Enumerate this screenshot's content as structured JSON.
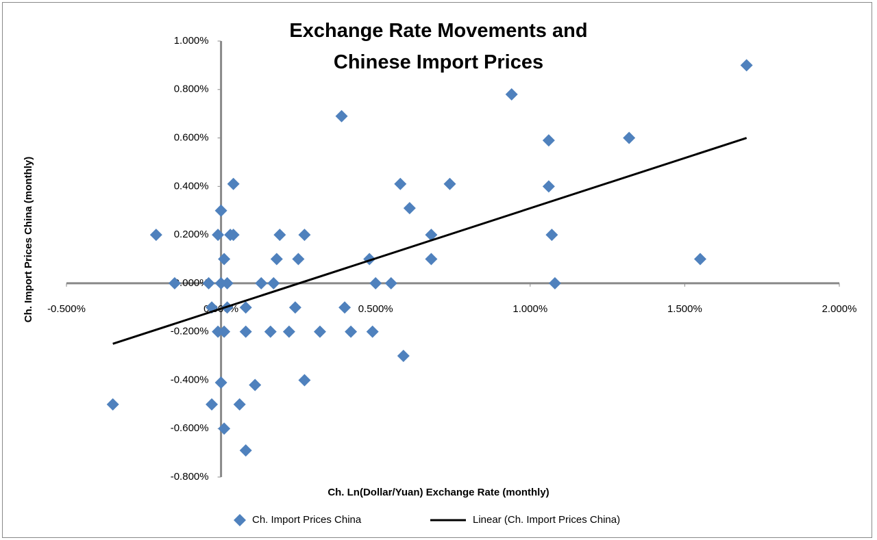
{
  "chart_data": {
    "type": "scatter",
    "title": "Exchange Rate Movements and Chinese Import Prices",
    "x_label": "Ch. Ln(Dollar/Yuan) Exchange Rate (monthly)",
    "y_label": "Ch. Import Prices China (monthly)",
    "xlim": [
      -0.5,
      2.0
    ],
    "ylim": [
      -0.8,
      1.0
    ],
    "xticks": [
      {
        "value": -0.5,
        "label": "-0.500%"
      },
      {
        "value": 0,
        "label": "0.000%"
      },
      {
        "value": 0.5,
        "label": "0.500%"
      },
      {
        "value": 1.0,
        "label": "1.000%"
      },
      {
        "value": 1.5,
        "label": "1.500%"
      },
      {
        "value": 2.0,
        "label": "2.000%"
      }
    ],
    "yticks": [
      {
        "value": -0.8,
        "label": "-0.800%"
      },
      {
        "value": -0.6,
        "label": "-0.600%"
      },
      {
        "value": -0.4,
        "label": "-0.400%"
      },
      {
        "value": -0.2,
        "label": "-0.200%"
      },
      {
        "value": 0,
        "label": "0.000%"
      },
      {
        "value": 0.2,
        "label": "0.200%"
      },
      {
        "value": 0.4,
        "label": "0.400%"
      },
      {
        "value": 0.6,
        "label": "0.600%"
      },
      {
        "value": 0.8,
        "label": "0.800%"
      },
      {
        "value": 1.0,
        "label": "1.000%"
      }
    ],
    "grid": false,
    "legend": "bottom",
    "series": [
      {
        "name": "Ch. Import Prices China",
        "color": "#4f81bd",
        "marker": "diamond",
        "x": [
          1.7,
          0.94,
          0.39,
          1.06,
          1.32,
          0.04,
          0.58,
          0.74,
          1.06,
          0.61,
          0.0,
          -0.21,
          -0.01,
          0.03,
          0.04,
          0.19,
          0.27,
          0.68,
          1.07,
          0.01,
          0.18,
          0.25,
          0.48,
          0.68,
          1.55,
          -0.15,
          -0.04,
          0.0,
          0.02,
          0.13,
          0.17,
          0.5,
          0.55,
          1.08,
          -0.03,
          0.02,
          0.08,
          0.24,
          0.4,
          -0.01,
          0.01,
          0.08,
          0.16,
          0.22,
          0.32,
          0.42,
          0.49,
          0.59,
          0.0,
          0.11,
          0.27,
          -0.35,
          -0.03,
          0.06,
          0.01,
          0.08
        ],
        "values": [
          0.9,
          0.78,
          0.69,
          0.59,
          0.6,
          0.41,
          0.41,
          0.41,
          0.4,
          0.31,
          0.3,
          0.2,
          0.2,
          0.2,
          0.2,
          0.2,
          0.2,
          0.2,
          0.2,
          0.1,
          0.1,
          0.1,
          0.1,
          0.1,
          0.1,
          0.0,
          0.0,
          0.0,
          0.0,
          0.0,
          0.0,
          0.0,
          0.0,
          0.0,
          -0.1,
          -0.1,
          -0.1,
          -0.1,
          -0.1,
          -0.2,
          -0.2,
          -0.2,
          -0.2,
          -0.2,
          -0.2,
          -0.2,
          -0.2,
          -0.3,
          -0.41,
          -0.42,
          -0.4,
          -0.5,
          -0.5,
          -0.5,
          -0.6,
          -0.69
        ]
      },
      {
        "name": "Linear (Ch. Import Prices China)",
        "color": "#000000",
        "type": "line",
        "x": [
          -0.35,
          1.7
        ],
        "values": [
          -0.25,
          0.6
        ]
      }
    ]
  }
}
